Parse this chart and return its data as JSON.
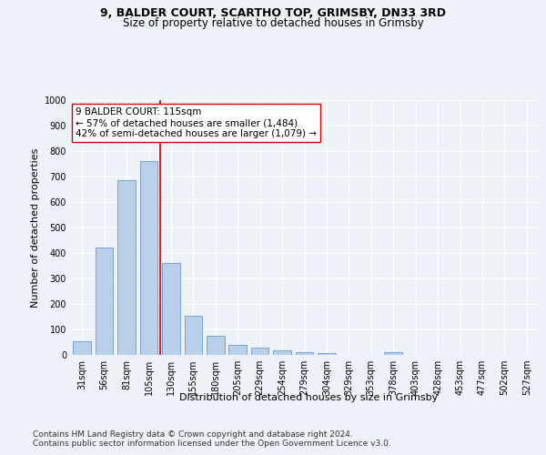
{
  "title1": "9, BALDER COURT, SCARTHO TOP, GRIMSBY, DN33 3RD",
  "title2": "Size of property relative to detached houses in Grimsby",
  "xlabel": "Distribution of detached houses by size in Grimsby",
  "ylabel": "Number of detached properties",
  "categories": [
    "31sqm",
    "56sqm",
    "81sqm",
    "105sqm",
    "130sqm",
    "155sqm",
    "180sqm",
    "205sqm",
    "229sqm",
    "254sqm",
    "279sqm",
    "304sqm",
    "329sqm",
    "353sqm",
    "378sqm",
    "403sqm",
    "428sqm",
    "453sqm",
    "477sqm",
    "502sqm",
    "527sqm"
  ],
  "values": [
    52,
    422,
    685,
    760,
    360,
    153,
    75,
    40,
    27,
    18,
    10,
    8,
    0,
    0,
    10,
    0,
    0,
    0,
    0,
    0,
    0
  ],
  "bar_color": "#b8d0ea",
  "bar_edge_color": "#6699cc",
  "vline_color": "#cc0000",
  "annotation_text": "9 BALDER COURT: 115sqm\n← 57% of detached houses are smaller (1,484)\n42% of semi-detached houses are larger (1,079) →",
  "annotation_box_facecolor": "#ffffff",
  "annotation_box_edgecolor": "#cc0000",
  "ylim": [
    0,
    1000
  ],
  "yticks": [
    0,
    100,
    200,
    300,
    400,
    500,
    600,
    700,
    800,
    900,
    1000
  ],
  "footer1": "Contains HM Land Registry data © Crown copyright and database right 2024.",
  "footer2": "Contains public sector information licensed under the Open Government Licence v3.0.",
  "bg_color": "#edf2f9",
  "title_fontsize": 9,
  "subtitle_fontsize": 8.5,
  "axis_label_fontsize": 8,
  "tick_fontsize": 7,
  "annotation_fontsize": 7.5,
  "footer_fontsize": 6.5
}
